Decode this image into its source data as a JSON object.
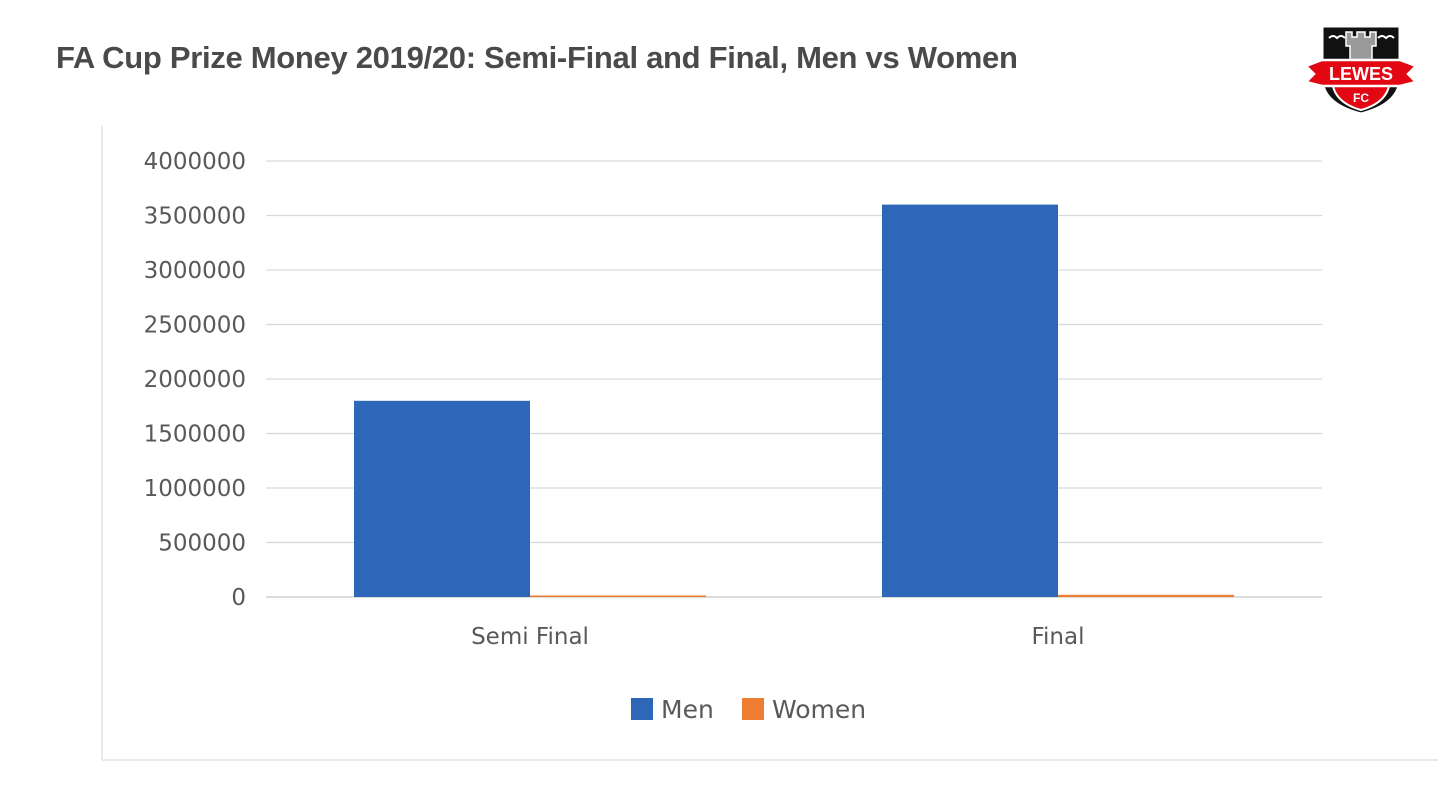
{
  "header": {
    "title": "FA Cup Prize Money 2019/20: Semi-Final and Final, Men vs Women"
  },
  "logo": {
    "text_top": "LEWES",
    "text_bottom": "FC",
    "colors": {
      "red": "#e30613",
      "black": "#111111",
      "white": "#ffffff",
      "grey": "#9a9a9a"
    }
  },
  "chart_data": {
    "type": "bar",
    "categories": [
      "Semi Final",
      "Final"
    ],
    "series": [
      {
        "name": "Men",
        "values": [
          1800000,
          3600000
        ],
        "color": "#2e67b8"
      },
      {
        "name": "Women",
        "values": [
          2000,
          20000
        ],
        "color": "#ed7d31"
      }
    ],
    "ylim": [
      0,
      4000000
    ],
    "yticks": [
      0,
      500000,
      1000000,
      1500000,
      2000000,
      2500000,
      3000000,
      3500000,
      4000000
    ],
    "grid": true,
    "legend_position": "bottom",
    "xlabel": "",
    "ylabel": ""
  }
}
